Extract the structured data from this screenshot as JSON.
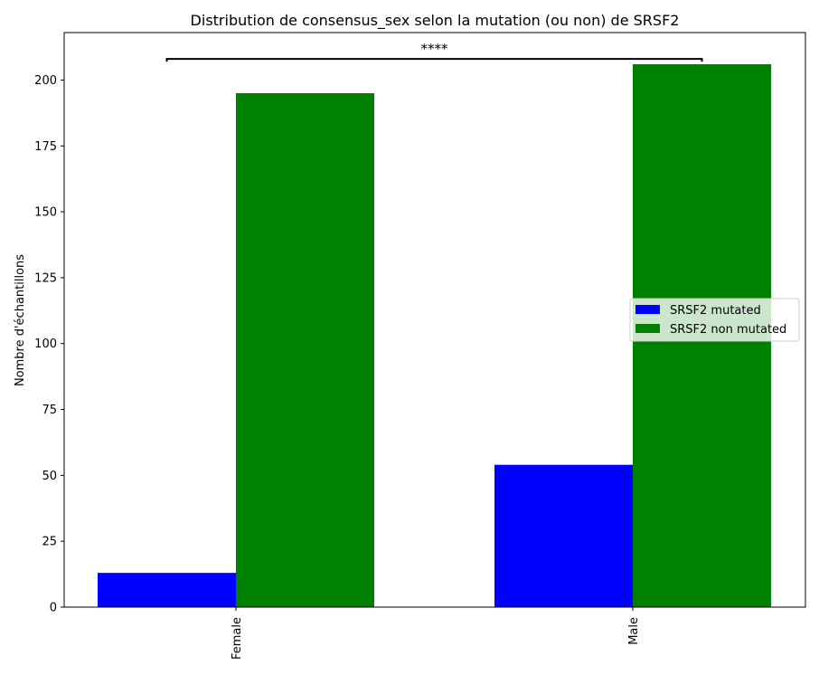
{
  "chart_data": {
    "type": "bar",
    "title": "Distribution de consensus_sex selon la mutation (ou non) de SRSF2",
    "xlabel": "",
    "ylabel": "Nombre d'échantillons",
    "categories": [
      "Female",
      "Male"
    ],
    "ylim": [
      0,
      218
    ],
    "yticks": [
      0,
      25,
      50,
      75,
      100,
      125,
      150,
      175,
      200
    ],
    "series": [
      {
        "name": "SRSF2 mutated",
        "color": "#0000ff",
        "values": [
          13,
          54
        ]
      },
      {
        "name": "SRSF2 non mutated",
        "color": "#008000",
        "values": [
          195,
          206
        ]
      }
    ],
    "significance": {
      "label": "****",
      "y": 208
    },
    "legend": {
      "placement": "center-right"
    },
    "grid": false
  }
}
